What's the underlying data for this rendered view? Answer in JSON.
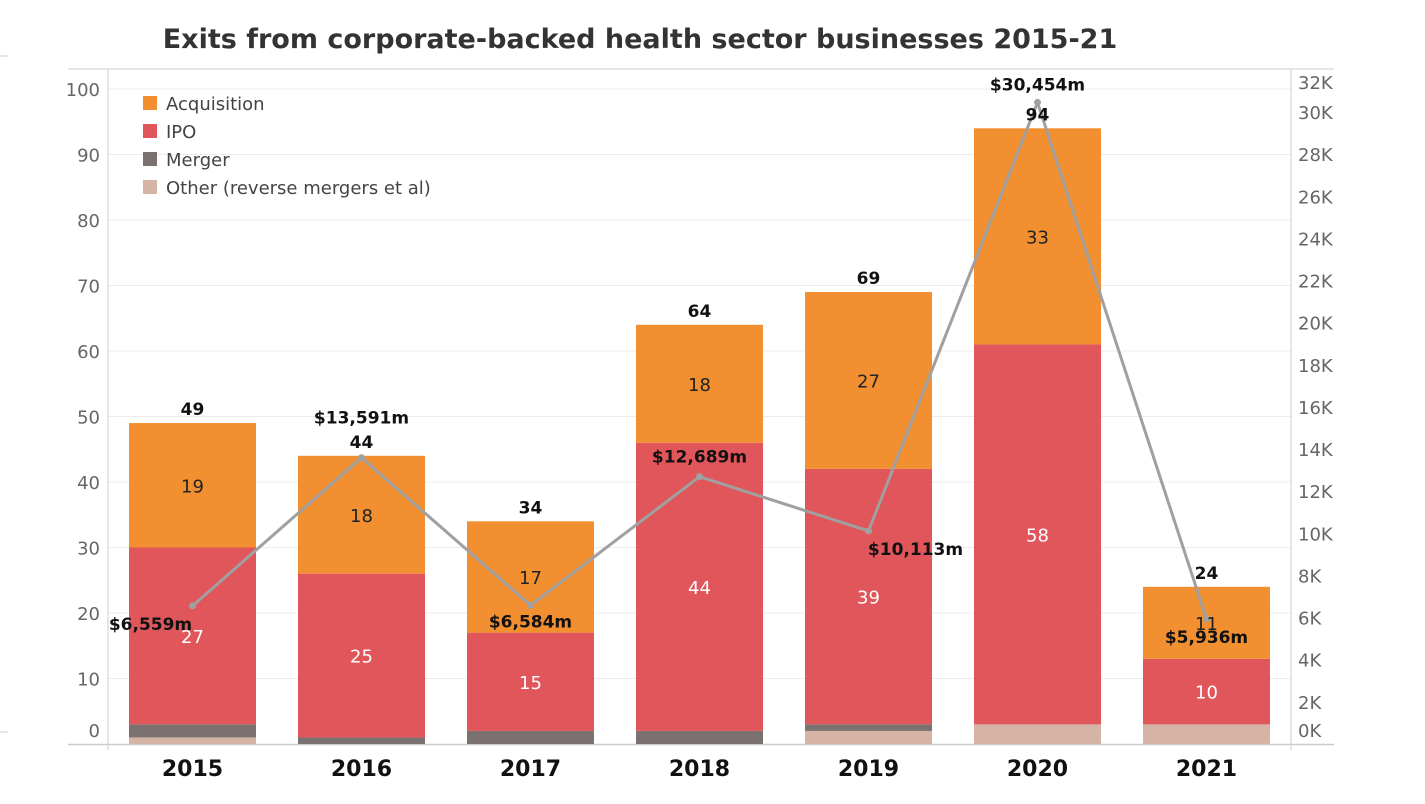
{
  "chart_data": {
    "type": "bar",
    "subtype": "stacked-bar-with-line",
    "title": "Exits from corporate-backed health sector businesses 2015-21",
    "categories": [
      "2015",
      "2016",
      "2017",
      "2018",
      "2019",
      "2020",
      "2021"
    ],
    "series": [
      {
        "name": "Other (reverse mergers et al)",
        "color": "#d5b4a6",
        "values": [
          1,
          0,
          0,
          0,
          2,
          3,
          3
        ]
      },
      {
        "name": "Merger",
        "color": "#7a7170",
        "values": [
          2,
          1,
          2,
          2,
          1,
          0,
          0
        ]
      },
      {
        "name": "IPO",
        "color": "#e0565b",
        "values": [
          27,
          25,
          15,
          44,
          39,
          58,
          10
        ]
      },
      {
        "name": "Acquisition",
        "color": "#f28f30",
        "values": [
          19,
          18,
          17,
          18,
          27,
          33,
          11
        ]
      }
    ],
    "totals": [
      49,
      44,
      34,
      64,
      69,
      94,
      24
    ],
    "line_series": {
      "name": "Exit value ($m)",
      "color": "#a0a0a0",
      "values": [
        6559,
        13591,
        6584,
        12689,
        10113,
        30454,
        5936
      ],
      "labels": [
        "$6,559m",
        "$13,591m",
        "$6,584m",
        "$12,689m",
        "$10,113m",
        "$30,454m",
        "$5,936m"
      ]
    },
    "legend": {
      "position": "top-left",
      "items": [
        {
          "label": "Acquisition",
          "color": "#f28f30"
        },
        {
          "label": "IPO",
          "color": "#e0565b"
        },
        {
          "label": "Merger",
          "color": "#7a7170"
        },
        {
          "label": "Other (reverse mergers et al)",
          "color": "#d5b4a6"
        }
      ]
    },
    "y_left": {
      "label": "",
      "ylim": [
        0,
        100
      ],
      "ticks": [
        "0",
        "10",
        "20",
        "30",
        "40",
        "50",
        "60",
        "70",
        "80",
        "90",
        "100"
      ],
      "tick_values": [
        0,
        10,
        20,
        30,
        40,
        50,
        60,
        70,
        80,
        90,
        100
      ]
    },
    "y_right": {
      "label": "",
      "ylim": [
        0,
        31800
      ],
      "ticks": [
        "0K",
        "2K",
        "4K",
        "6K",
        "8K",
        "10K",
        "12K",
        "14K",
        "16K",
        "18K",
        "20K",
        "22K",
        "24K",
        "26K",
        "28K",
        "30K",
        "32K"
      ],
      "tick_values": [
        0,
        2000,
        4000,
        6000,
        8000,
        10000,
        12000,
        14000,
        16000,
        18000,
        20000,
        22000,
        24000,
        26000,
        28000,
        30000,
        32000
      ]
    },
    "xlabel": "",
    "grid": true
  }
}
